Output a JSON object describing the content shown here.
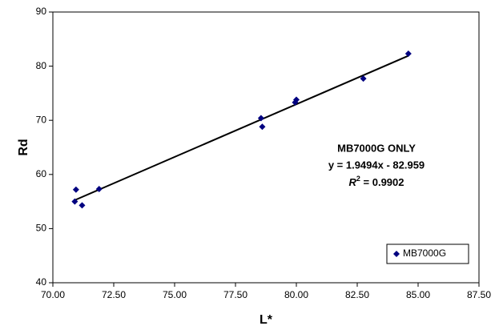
{
  "chart_data": {
    "type": "scatter",
    "x_label": "L*",
    "y_label": "Rd",
    "series": [
      {
        "name": "MB7000G",
        "color": "#000080",
        "x": [
          70.9,
          70.95,
          71.2,
          71.9,
          78.55,
          78.6,
          79.95,
          80.0,
          82.75,
          84.6
        ],
        "values": [
          55.0,
          57.2,
          54.3,
          57.3,
          70.4,
          68.8,
          73.3,
          73.8,
          77.7,
          82.3
        ]
      }
    ],
    "trendline": true,
    "annotations": [
      "MB7000G ONLY",
      "y = 1.9494x - 82.959"
    ],
    "r_squared": {
      "symbol": "R",
      "power": "2",
      "text": " = 0.9902"
    },
    "xlim": [
      70,
      87.5
    ],
    "xticks": [
      {
        "value": 70,
        "label": "70.00"
      },
      {
        "value": 72.5,
        "label": "72.50"
      },
      {
        "value": 75,
        "label": "75.00"
      },
      {
        "value": 77.5,
        "label": "77.50"
      },
      {
        "value": 80,
        "label": "80.00"
      },
      {
        "value": 82.5,
        "label": "82.50"
      },
      {
        "value": 85,
        "label": "85.00"
      },
      {
        "value": 87.5,
        "label": "87.50"
      }
    ],
    "ylim": [
      40,
      90
    ],
    "yticks": [
      40,
      50,
      60,
      70,
      80,
      90
    ],
    "grid": false,
    "legend": "lower-right"
  }
}
